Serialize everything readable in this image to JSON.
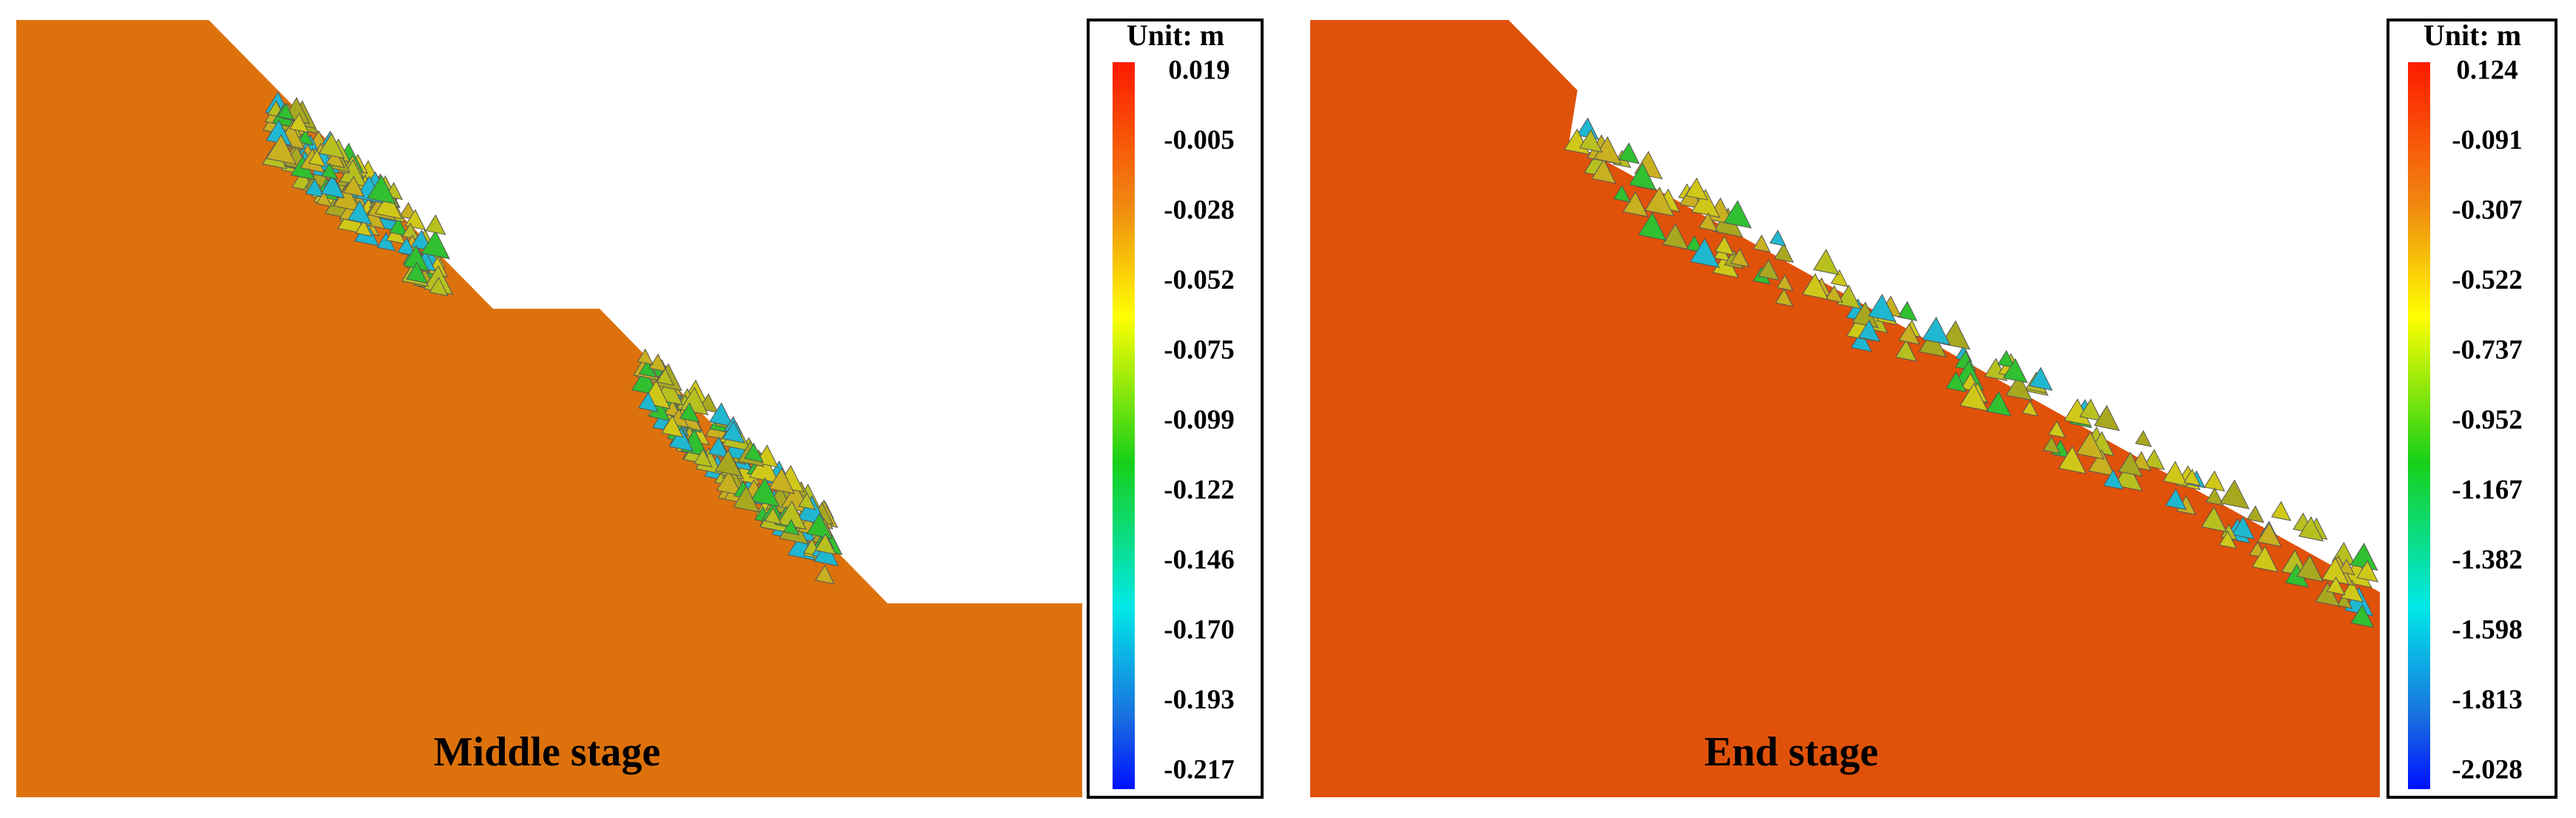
{
  "panels": [
    {
      "caption": "Middle stage",
      "legend": {
        "title": "Unit: m",
        "labels": [
          "0.019",
          "-0.005",
          "-0.028",
          "-0.052",
          "-0.075",
          "-0.099",
          "-0.122",
          "-0.146",
          "-0.170",
          "-0.193",
          "-0.217"
        ]
      }
    },
    {
      "caption": "End stage",
      "legend": {
        "title": "Unit: m",
        "labels": [
          "0.124",
          "-0.091",
          "-0.307",
          "-0.522",
          "-0.737",
          "-0.952",
          "-1.167",
          "-1.382",
          "-1.598",
          "-1.813",
          "-2.028"
        ]
      }
    }
  ]
}
